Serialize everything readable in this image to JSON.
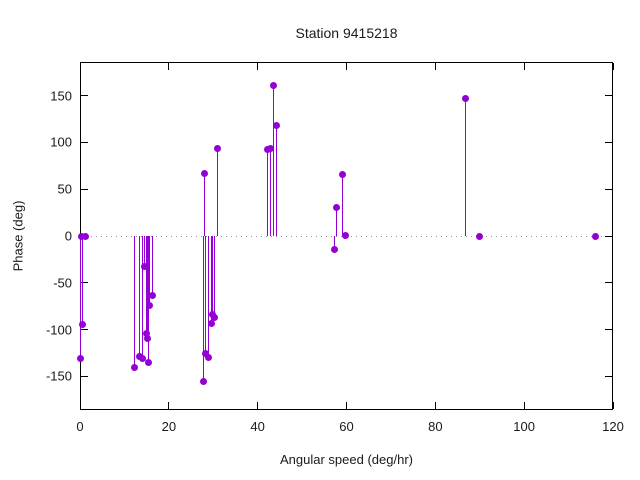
{
  "chart_data": {
    "type": "stem",
    "title": "Station 9415218",
    "xlabel": "Angular speed (deg/hr)",
    "ylabel": "Phase (deg)",
    "xlim": [
      0,
      120
    ],
    "ylim": [
      -186,
      186
    ],
    "x_ticks": [
      0,
      20,
      40,
      60,
      80,
      100,
      120
    ],
    "y_ticks": [
      -150,
      -100,
      -50,
      0,
      50,
      100,
      150
    ],
    "grid": "dotted zero line only",
    "legend_position": "none",
    "marker_color": "#9400d3",
    "zero_line_color": "#8f8f8f",
    "border_color": "#000000",
    "points": [
      {
        "x": 0.1,
        "y": -131
      },
      {
        "x": 0.5,
        "y": -95
      },
      {
        "x": 0.4,
        "y": 0
      },
      {
        "x": 1.3,
        "y": 0
      },
      {
        "x": 12.2,
        "y": -141
      },
      {
        "x": 13.3,
        "y": -129
      },
      {
        "x": 14.1,
        "y": -131
      },
      {
        "x": 14.6,
        "y": -33
      },
      {
        "x": 15.0,
        "y": -104
      },
      {
        "x": 15.1,
        "y": -110
      },
      {
        "x": 15.4,
        "y": -135
      },
      {
        "x": 15.6,
        "y": -74
      },
      {
        "x": 16.4,
        "y": -64
      },
      {
        "x": 27.7,
        "y": -155
      },
      {
        "x": 28.0,
        "y": 67
      },
      {
        "x": 28.3,
        "y": -126
      },
      {
        "x": 28.9,
        "y": -130
      },
      {
        "x": 29.5,
        "y": -94
      },
      {
        "x": 29.9,
        "y": -84
      },
      {
        "x": 30.2,
        "y": -87
      },
      {
        "x": 31.0,
        "y": 94
      },
      {
        "x": 42.3,
        "y": 92
      },
      {
        "x": 43.0,
        "y": 94
      },
      {
        "x": 43.6,
        "y": 161
      },
      {
        "x": 44.2,
        "y": 118
      },
      {
        "x": 57.4,
        "y": -14
      },
      {
        "x": 57.7,
        "y": 31
      },
      {
        "x": 59.1,
        "y": 66
      },
      {
        "x": 59.8,
        "y": 1
      },
      {
        "x": 86.9,
        "y": 147
      },
      {
        "x": 90.0,
        "y": 0
      },
      {
        "x": 116.0,
        "y": 0
      }
    ]
  }
}
